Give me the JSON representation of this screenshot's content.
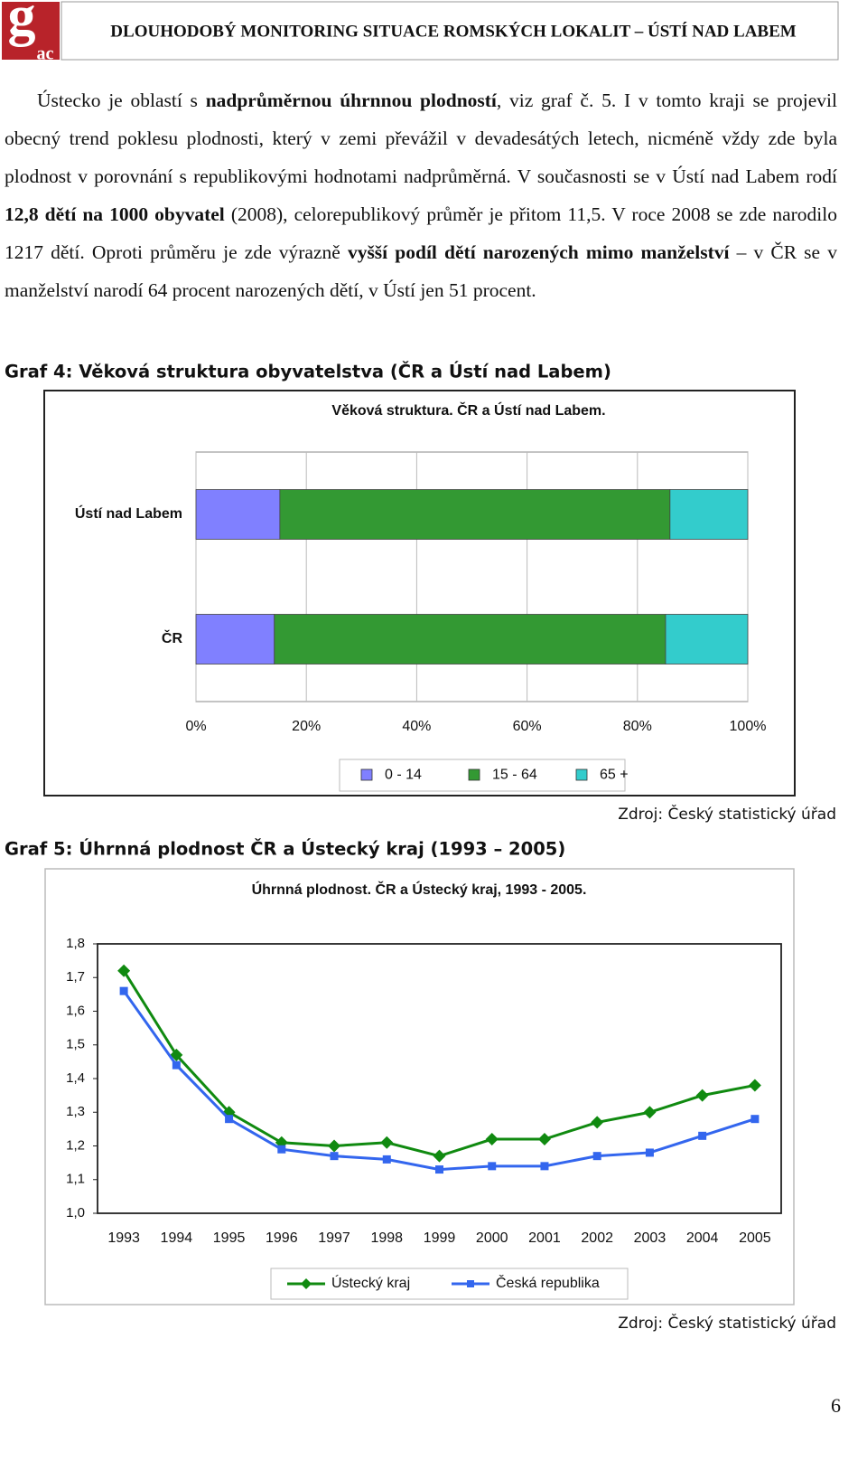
{
  "header": {
    "logo_main": "g",
    "logo_sub": "ac",
    "title": "DLOUHODOBÝ MONITORING SITUACE ROMSKÝCH LOKALIT – ÚSTÍ NAD LABEM"
  },
  "paragraph": [
    {
      "text": "Ústecko je oblastí s ",
      "bold": false
    },
    {
      "text": "nadprůměrnou úhrnnou plodností",
      "bold": true
    },
    {
      "text": ", viz graf č. 5. I v tomto kraji se projevil obecný trend poklesu plodnosti, který v zemi převážil v devadesátých letech, nicméně vždy zde byla plodnost v porovnání s republikovými hodnotami nadprůměrná. V současnosti se v Ústí nad Labem rodí ",
      "bold": false
    },
    {
      "text": "12,8 dětí na 1000 obyvatel",
      "bold": true
    },
    {
      "text": " (2008), celorepublikový průměr je přitom 11,5. V roce 2008 se zde narodilo 1217 dětí. Oproti průměru je zde výrazně ",
      "bold": false
    },
    {
      "text": "vyšší podíl dětí narozených mimo manželství",
      "bold": true
    },
    {
      "text": " – v ČR se v manželství narodí 64 procent narozených dětí, v Ústí jen 51 procent.",
      "bold": false
    }
  ],
  "figures": [
    {
      "caption": "Graf 4: Věková struktura obyvatelstva (ČR a Ústí nad Labem)",
      "source": "Zdroj: Český statistický úřad"
    },
    {
      "caption": "Graf 5: Úhrnná plodnost ČR a Ústecký kraj (1993 – 2005)",
      "source": "Zdroj: Český statistický úřad"
    }
  ],
  "chart_data": [
    {
      "type": "hbar",
      "stacked": true,
      "title": "Věková struktura. ČR a Ústí nad Labem.",
      "categories": [
        "Ústí nad Labem",
        "ČR"
      ],
      "series": [
        {
          "name": "0 - 14",
          "color": "#8080ff",
          "values": [
            15.2,
            14.2
          ]
        },
        {
          "name": "15 - 64",
          "color": "#339933",
          "values": [
            70.7,
            70.9
          ]
        },
        {
          "name": "65 +",
          "color": "#33cccc",
          "values": [
            14.1,
            14.9
          ]
        }
      ],
      "xlim": [
        0,
        100
      ],
      "xticks": [
        {
          "value": 0,
          "label": "0%"
        },
        {
          "value": 20,
          "label": "20%"
        },
        {
          "value": 40,
          "label": "40%"
        },
        {
          "value": 60,
          "label": "60%"
        },
        {
          "value": 80,
          "label": "80%"
        },
        {
          "value": 100,
          "label": "100%"
        }
      ],
      "grid": true,
      "legend": "bottom"
    },
    {
      "type": "line",
      "title": "Úhrnná plodnost. ČR a Ústecký kraj, 1993 - 2005.",
      "categories": [
        "1993",
        "1994",
        "1995",
        "1996",
        "1997",
        "1998",
        "1999",
        "2000",
        "2001",
        "2002",
        "2003",
        "2004",
        "2005"
      ],
      "series": [
        {
          "name": "Ústecký kraj",
          "color": "#108a10",
          "marker": "diamond",
          "values": [
            1.72,
            1.47,
            1.3,
            1.21,
            1.2,
            1.21,
            1.17,
            1.22,
            1.22,
            1.27,
            1.3,
            1.35,
            1.38
          ]
        },
        {
          "name": "Česká republika",
          "color": "#3366ee",
          "marker": "square",
          "values": [
            1.66,
            1.44,
            1.28,
            1.19,
            1.17,
            1.16,
            1.13,
            1.14,
            1.14,
            1.17,
            1.18,
            1.23,
            1.28
          ]
        }
      ],
      "ylim": [
        1.0,
        1.8
      ],
      "yticks": [
        {
          "value": 1.0,
          "label": "1,0"
        },
        {
          "value": 1.1,
          "label": "1,1"
        },
        {
          "value": 1.2,
          "label": "1,2"
        },
        {
          "value": 1.3,
          "label": "1,3"
        },
        {
          "value": 1.4,
          "label": "1,4"
        },
        {
          "value": 1.5,
          "label": "1,5"
        },
        {
          "value": 1.6,
          "label": "1,6"
        },
        {
          "value": 1.7,
          "label": "1,7"
        },
        {
          "value": 1.8,
          "label": "1,8"
        }
      ],
      "grid": false,
      "legend": "bottom"
    }
  ],
  "page_number": "6"
}
